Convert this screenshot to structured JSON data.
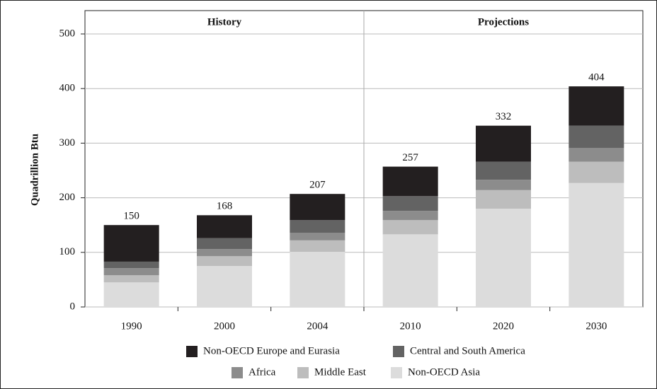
{
  "chart_data": {
    "type": "stacked_bar",
    "ylabel": "Quadrillion Btu",
    "annotations": [
      "History",
      "Projections"
    ],
    "categories": [
      "1990",
      "2000",
      "2004",
      "2010",
      "2020",
      "2030"
    ],
    "totals": [
      150,
      168,
      207,
      257,
      332,
      404
    ],
    "series": [
      {
        "name": "Non-OECD Asia",
        "color": "#dcdcdc",
        "values": [
          45,
          75,
          101,
          133,
          180,
          227
        ]
      },
      {
        "name": "Middle East",
        "color": "#bdbdbd",
        "values": [
          13,
          18,
          21,
          26,
          34,
          39
        ]
      },
      {
        "name": "Africa",
        "color": "#8c8c8c",
        "values": [
          13,
          13,
          14,
          17,
          19,
          25
        ]
      },
      {
        "name": "Central and South America",
        "color": "#636363",
        "values": [
          12,
          20,
          23,
          27,
          33,
          41
        ]
      },
      {
        "name": "Non-OECD Europe and Eurasia",
        "color": "#231f20",
        "values": [
          67,
          42,
          48,
          54,
          66,
          72
        ]
      }
    ],
    "ylim": [
      0,
      500
    ],
    "yticks": [
      0,
      100,
      200,
      300,
      400,
      500
    ],
    "grid": true
  }
}
